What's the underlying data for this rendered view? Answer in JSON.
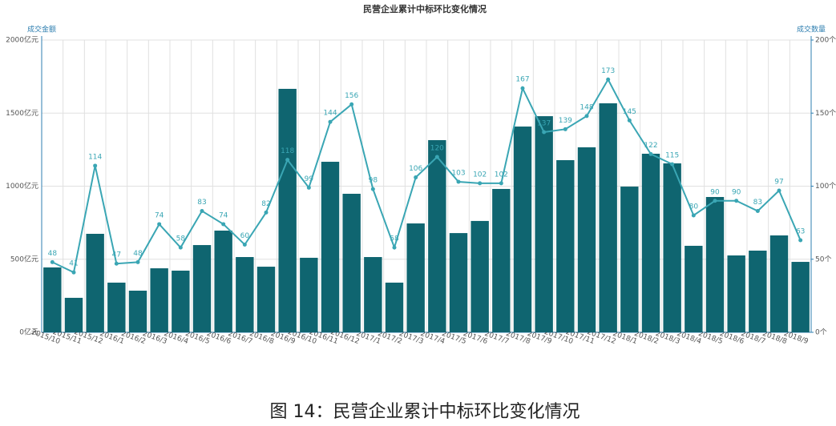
{
  "chart_data": {
    "type": "bar-line",
    "title": "民营企业累计中标环比变化情况",
    "caption": "图 14：民营企业累计中标环比变化情况",
    "y_label": "成交金额",
    "y2_label": "成交数量",
    "categories": [
      "2015/10",
      "2015/11",
      "2015/12",
      "2016/1",
      "2016/2",
      "2016/3",
      "2016/4",
      "2016/5",
      "2016/6",
      "2016/7",
      "2016/8",
      "2016/9",
      "2016/10",
      "2016/11",
      "2016/12",
      "2017/1",
      "2017/2",
      "2017/3",
      "2017/4",
      "2017/5",
      "2017/6",
      "2017/7",
      "2017/8",
      "2017/9",
      "2017/10",
      "2017/11",
      "2017/12",
      "2018/1",
      "2018/2",
      "2018/3",
      "2018/4",
      "2018/5",
      "2018/6",
      "2018/7",
      "2018/8",
      "2018/9"
    ],
    "series": [
      {
        "type": "bar",
        "color": "#0f6570",
        "values": [
          444,
          236,
          674,
          340,
          285,
          438,
          422,
          597,
          696,
          515,
          449,
          1666,
          510,
          1167,
          948,
          515,
          340,
          745,
          1315,
          679,
          762,
          981,
          1408,
          1479,
          1178,
          1266,
          1567,
          997,
          1222,
          1156,
          592,
          926,
          526,
          559,
          663,
          482
        ]
      },
      {
        "type": "line",
        "axis": "y2",
        "color": "#3aa6b4",
        "values": [
          48,
          41,
          114,
          47,
          48,
          74,
          58,
          83,
          74,
          60,
          82,
          118,
          99,
          144,
          156,
          98,
          58,
          106,
          120,
          103,
          102,
          102,
          167,
          137,
          139,
          148,
          173,
          145,
          122,
          115,
          80,
          90,
          90,
          83,
          97,
          63
        ]
      }
    ],
    "ylim": [
      0,
      2000
    ],
    "yticks": [
      {
        "value": 0,
        "label": "0亿元"
      },
      {
        "value": 500,
        "label": "500亿元"
      },
      {
        "value": 1000,
        "label": "1000亿元"
      },
      {
        "value": 1500,
        "label": "1500亿元"
      },
      {
        "value": 2000,
        "label": "2000亿元"
      }
    ],
    "y2lim": [
      0,
      200
    ],
    "y2ticks": [
      {
        "value": 0,
        "label": "0个"
      },
      {
        "value": 50,
        "label": "50个"
      },
      {
        "value": 100,
        "label": "100个"
      },
      {
        "value": 150,
        "label": "150个"
      },
      {
        "value": 200,
        "label": "200个"
      }
    ],
    "grid": true
  }
}
